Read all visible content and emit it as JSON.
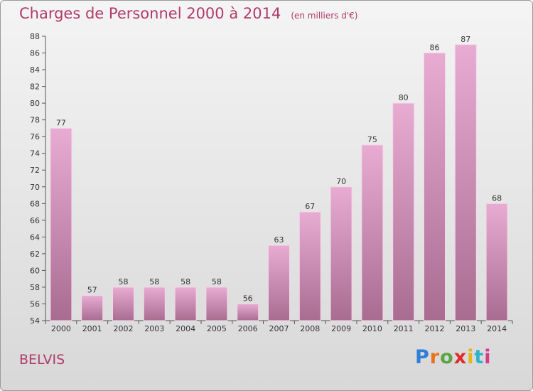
{
  "header": {
    "title": "Charges de Personnel 2000 à 2014",
    "unit": "(en milliers d'€)"
  },
  "footer": {
    "place": "BELVIS",
    "brand": "Proxiti"
  },
  "colors": {
    "bar": "#d9a0c6",
    "title": "#b03a6a"
  },
  "chart_data": {
    "type": "bar",
    "categories": [
      "2000",
      "2001",
      "2002",
      "2003",
      "2004",
      "2005",
      "2006",
      "2007",
      "2008",
      "2009",
      "2010",
      "2011",
      "2012",
      "2013",
      "2014"
    ],
    "values": [
      77,
      57,
      58,
      58,
      58,
      58,
      56,
      63,
      67,
      70,
      75,
      80,
      86,
      87,
      68
    ],
    "title": "Charges de Personnel 2000 à 2014",
    "subtitle": "(en milliers d'€)",
    "xlabel": "",
    "ylabel": "",
    "ylim": [
      54,
      88
    ],
    "yticks": [
      54,
      56,
      58,
      60,
      62,
      64,
      66,
      68,
      70,
      72,
      74,
      76,
      78,
      80,
      82,
      84,
      86,
      88
    ],
    "grid": false,
    "data_labels": true
  }
}
